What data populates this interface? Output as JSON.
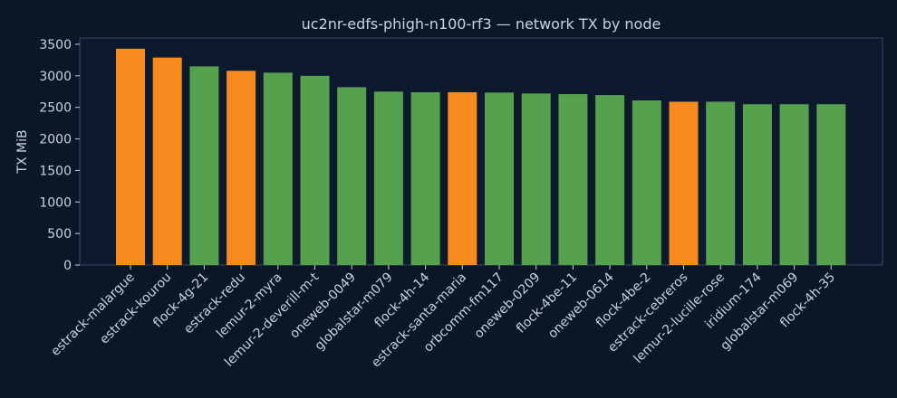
{
  "chart_data": {
    "type": "bar",
    "title": "uc2nr-edfs-phigh-n100-rf3 — network TX by node",
    "xlabel": "",
    "ylabel": "TX MiB",
    "ylim": [
      0,
      3600
    ],
    "yticks": [
      0,
      500,
      1000,
      1500,
      2000,
      2500,
      3000,
      3500
    ],
    "grid": false,
    "categories": [
      "estrack-malargue",
      "estrack-kourou",
      "flock-4g-21",
      "estrack-redu",
      "lemur-2-myra",
      "lemur-2-deverill-m-t",
      "oneweb-0049",
      "globalstar-m079",
      "flock-4h-14",
      "estrack-santa-maria",
      "orbcomm-fm117",
      "oneweb-0209",
      "flock-4be-11",
      "oneweb-0614",
      "flock-4be-2",
      "estrack-cebreros",
      "lemur-2-lucille-rose",
      "iridium-174",
      "globalstar-m069",
      "flock-4h-35"
    ],
    "values": [
      3430,
      3290,
      3150,
      3080,
      3050,
      3000,
      2820,
      2750,
      2740,
      2740,
      2735,
      2720,
      2710,
      2695,
      2610,
      2590,
      2590,
      2550,
      2550,
      2550
    ],
    "highlighted": [
      true,
      true,
      false,
      true,
      false,
      false,
      false,
      false,
      false,
      true,
      false,
      false,
      false,
      false,
      false,
      true,
      false,
      false,
      false,
      false
    ],
    "colors": {
      "default": "#55a14e",
      "highlight": "#f78a1d",
      "background": "#0b1628",
      "plot_background": "#0d1a2e",
      "axis": "#3a4a60",
      "text": "#c8d2e0"
    }
  }
}
